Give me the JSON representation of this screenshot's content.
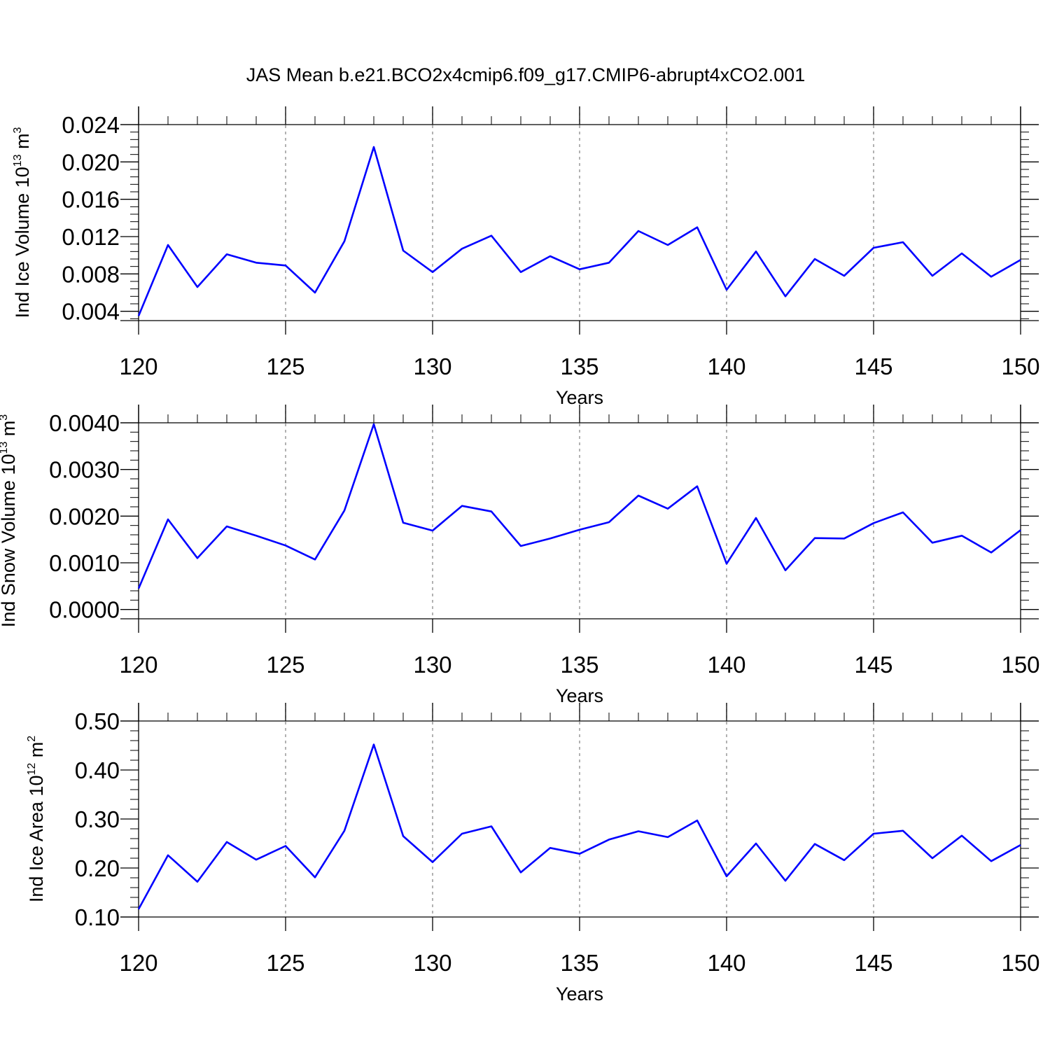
{
  "title": "JAS Mean b.e21.BCO2x4cmip6.f09_g17.CMIP6-abrupt4xCO2.001",
  "colors": {
    "line": "#0000ff",
    "axis": "#000000",
    "grid": "#7f7f7f",
    "background": "#ffffff"
  },
  "chart_data": [
    {
      "type": "line",
      "ylabel_text": "Ind Ice Volume 10",
      "ylabel_sup": "13",
      "ylabel_unit": " m",
      "ylabel_unit_sup": "3",
      "xlabel": "Years",
      "xlim": [
        120,
        150
      ],
      "ylim": [
        0.003,
        0.024
      ],
      "xticks": [
        120,
        125,
        130,
        135,
        140,
        145,
        150
      ],
      "yticks": [
        0.004,
        0.008,
        0.012,
        0.016,
        0.02,
        0.024
      ],
      "ytick_labels": [
        "0.004",
        "0.008",
        "0.012",
        "0.016",
        "0.020",
        "0.024"
      ],
      "x": [
        120,
        121,
        122,
        123,
        124,
        125,
        126,
        127,
        128,
        129,
        130,
        131,
        132,
        133,
        134,
        135,
        136,
        137,
        138,
        139,
        140,
        141,
        142,
        143,
        144,
        145,
        146,
        147,
        148,
        149,
        150
      ],
      "values": [
        0.0035,
        0.0111,
        0.0066,
        0.0101,
        0.0092,
        0.0089,
        0.006,
        0.0115,
        0.0216,
        0.0105,
        0.0082,
        0.0107,
        0.0121,
        0.0082,
        0.0099,
        0.0085,
        0.0092,
        0.0126,
        0.0111,
        0.013,
        0.0063,
        0.0104,
        0.0056,
        0.0096,
        0.0078,
        0.0108,
        0.0114,
        0.0078,
        0.0102,
        0.0077,
        0.0095
      ]
    },
    {
      "type": "line",
      "ylabel_text": "Ind Snow Volume 10",
      "ylabel_sup": "13",
      "ylabel_unit": " m",
      "ylabel_unit_sup": "3",
      "xlabel": "Years",
      "xlim": [
        120,
        150
      ],
      "ylim": [
        -0.0002,
        0.004
      ],
      "xticks": [
        120,
        125,
        130,
        135,
        140,
        145,
        150
      ],
      "yticks": [
        0.0,
        0.001,
        0.002,
        0.003,
        0.004
      ],
      "ytick_labels": [
        "0.0000",
        "0.0010",
        "0.0020",
        "0.0030",
        "0.0040"
      ],
      "x": [
        120,
        121,
        122,
        123,
        124,
        125,
        126,
        127,
        128,
        129,
        130,
        131,
        132,
        133,
        134,
        135,
        136,
        137,
        138,
        139,
        140,
        141,
        142,
        143,
        144,
        145,
        146,
        147,
        148,
        149,
        150
      ],
      "values": [
        0.00045,
        0.00193,
        0.0011,
        0.00178,
        0.00158,
        0.00137,
        0.00107,
        0.00212,
        0.00397,
        0.00186,
        0.00169,
        0.00222,
        0.0021,
        0.00136,
        0.00152,
        0.00171,
        0.00187,
        0.00244,
        0.00216,
        0.00264,
        0.00098,
        0.00196,
        0.00084,
        0.00153,
        0.00152,
        0.00185,
        0.00208,
        0.00143,
        0.00158,
        0.00122,
        0.0017
      ]
    },
    {
      "type": "line",
      "ylabel_text": "Ind Ice Area 10",
      "ylabel_sup": "12",
      "ylabel_unit": " m",
      "ylabel_unit_sup": "2",
      "xlabel": "Years",
      "xlim": [
        120,
        150
      ],
      "ylim": [
        0.1,
        0.5
      ],
      "xticks": [
        120,
        125,
        130,
        135,
        140,
        145,
        150
      ],
      "yticks": [
        0.1,
        0.2,
        0.3,
        0.4,
        0.5
      ],
      "ytick_labels": [
        "0.10",
        "0.20",
        "0.30",
        "0.40",
        "0.50"
      ],
      "x": [
        120,
        121,
        122,
        123,
        124,
        125,
        126,
        127,
        128,
        129,
        130,
        131,
        132,
        133,
        134,
        135,
        136,
        137,
        138,
        139,
        140,
        141,
        142,
        143,
        144,
        145,
        146,
        147,
        148,
        149,
        150
      ],
      "values": [
        0.116,
        0.226,
        0.172,
        0.253,
        0.217,
        0.245,
        0.181,
        0.276,
        0.452,
        0.265,
        0.212,
        0.27,
        0.285,
        0.191,
        0.241,
        0.229,
        0.258,
        0.275,
        0.263,
        0.297,
        0.183,
        0.25,
        0.174,
        0.249,
        0.216,
        0.27,
        0.276,
        0.22,
        0.266,
        0.214,
        0.247
      ]
    }
  ]
}
